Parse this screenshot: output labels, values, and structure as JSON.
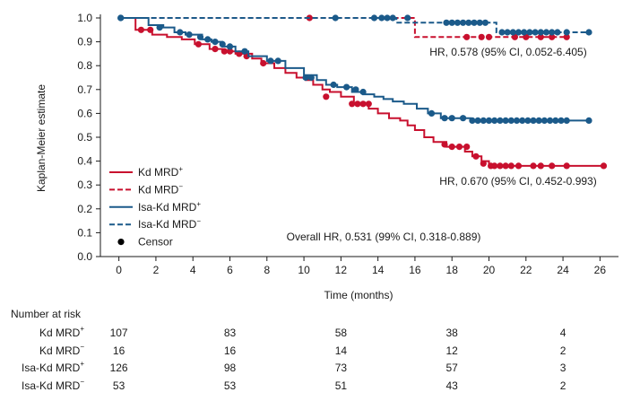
{
  "chart_data": {
    "type": "line",
    "title": "",
    "xlabel": "Time (months)",
    "ylabel": "Kaplan-Meier estimate",
    "xlim": [
      -1,
      27
    ],
    "ylim": [
      0,
      1.0
    ],
    "x_ticks": [
      "0",
      "2",
      "4",
      "6",
      "8",
      "10",
      "12",
      "14",
      "16",
      "18",
      "20",
      "22",
      "24",
      "26"
    ],
    "y_ticks": [
      "0.0",
      "0.1",
      "0.2",
      "0.3",
      "0.4",
      "0.5",
      "0.6",
      "0.7",
      "0.8",
      "0.9",
      "1.0"
    ],
    "legend": {
      "position": "left",
      "entries": [
        {
          "label": "Kd MRD",
          "sup": "+",
          "color": "#c8102e",
          "dash": "solid"
        },
        {
          "label": "Kd MRD",
          "sup": "−",
          "color": "#c8102e",
          "dash": "dashed"
        },
        {
          "label": "Isa-Kd MRD",
          "sup": "+",
          "color": "#1b5a8a",
          "dash": "solid"
        },
        {
          "label": "Isa-Kd MRD",
          "sup": "−",
          "color": "#1b5a8a",
          "dash": "dashed"
        },
        {
          "label": "Censor",
          "sup": "",
          "color": "#000000",
          "dash": "dot"
        }
      ]
    },
    "annotations": {
      "hr_mrd_neg": "HR, 0.578 (95% CI, 0.052-6.405)",
      "hr_mrd_pos": "HR, 0.670 (95% CI, 0.452-0.993)",
      "overall": "Overall HR, 0.531 (99% CI, 0.318-0.889)"
    },
    "series": [
      {
        "name": "Kd MRD+",
        "color": "#c8102e",
        "dash": "solid",
        "steps": [
          [
            0,
            1.0
          ],
          [
            0.9,
            0.95
          ],
          [
            1.8,
            0.93
          ],
          [
            2.6,
            0.92
          ],
          [
            3.4,
            0.91
          ],
          [
            4.1,
            0.89
          ],
          [
            4.9,
            0.87
          ],
          [
            5.6,
            0.86
          ],
          [
            6.3,
            0.85
          ],
          [
            7.2,
            0.83
          ],
          [
            7.7,
            0.81
          ],
          [
            8.4,
            0.79
          ],
          [
            9.0,
            0.77
          ],
          [
            9.6,
            0.75
          ],
          [
            10.1,
            0.74
          ],
          [
            10.5,
            0.72
          ],
          [
            11.0,
            0.7
          ],
          [
            11.4,
            0.69
          ],
          [
            12.0,
            0.67
          ],
          [
            12.7,
            0.64
          ],
          [
            13.5,
            0.62
          ],
          [
            14.0,
            0.6
          ],
          [
            14.6,
            0.58
          ],
          [
            15.2,
            0.57
          ],
          [
            15.6,
            0.55
          ],
          [
            16.0,
            0.53
          ],
          [
            16.5,
            0.5
          ],
          [
            17.0,
            0.48
          ],
          [
            17.7,
            0.46
          ],
          [
            18.7,
            0.44
          ],
          [
            19.1,
            0.42
          ],
          [
            19.6,
            0.4
          ],
          [
            20.0,
            0.38
          ]
        ],
        "end_x": 26.2,
        "censors": [
          [
            1.2,
            0.95
          ],
          [
            1.7,
            0.95
          ],
          [
            4.3,
            0.89
          ],
          [
            5.2,
            0.87
          ],
          [
            5.7,
            0.86
          ],
          [
            6.0,
            0.86
          ],
          [
            6.5,
            0.85
          ],
          [
            6.9,
            0.84
          ],
          [
            7.8,
            0.81
          ],
          [
            11.2,
            0.67
          ],
          [
            12.6,
            0.64
          ],
          [
            12.9,
            0.64
          ],
          [
            13.2,
            0.64
          ],
          [
            13.5,
            0.64
          ],
          [
            17.6,
            0.47
          ],
          [
            18.0,
            0.46
          ],
          [
            18.4,
            0.46
          ],
          [
            18.8,
            0.46
          ],
          [
            19.3,
            0.42
          ],
          [
            19.7,
            0.39
          ],
          [
            20.1,
            0.38
          ],
          [
            20.3,
            0.38
          ],
          [
            20.6,
            0.38
          ],
          [
            20.9,
            0.38
          ],
          [
            21.2,
            0.38
          ],
          [
            21.6,
            0.38
          ],
          [
            22.4,
            0.38
          ],
          [
            22.8,
            0.38
          ],
          [
            23.4,
            0.38
          ],
          [
            24.2,
            0.38
          ],
          [
            26.2,
            0.38
          ]
        ]
      },
      {
        "name": "Kd MRD−",
        "color": "#c8102e",
        "dash": "dashed",
        "steps": [
          [
            0,
            1.0
          ],
          [
            16.0,
            0.92
          ]
        ],
        "end_x": 24.2,
        "censors": [
          [
            10.3,
            1.0
          ],
          [
            18.8,
            0.92
          ],
          [
            19.6,
            0.92
          ],
          [
            20.0,
            0.92
          ],
          [
            21.4,
            0.92
          ],
          [
            22.0,
            0.92
          ],
          [
            22.8,
            0.92
          ],
          [
            23.4,
            0.92
          ],
          [
            24.2,
            0.92
          ]
        ]
      },
      {
        "name": "Isa-Kd MRD+",
        "color": "#1b5a8a",
        "dash": "solid",
        "steps": [
          [
            0,
            1.0
          ],
          [
            1.6,
            0.97
          ],
          [
            2.4,
            0.96
          ],
          [
            3.0,
            0.94
          ],
          [
            3.6,
            0.93
          ],
          [
            4.5,
            0.91
          ],
          [
            5.0,
            0.9
          ],
          [
            5.6,
            0.88
          ],
          [
            6.3,
            0.86
          ],
          [
            7.0,
            0.84
          ],
          [
            8.0,
            0.82
          ],
          [
            9.0,
            0.79
          ],
          [
            10.0,
            0.76
          ],
          [
            10.7,
            0.74
          ],
          [
            11.2,
            0.72
          ],
          [
            11.8,
            0.71
          ],
          [
            12.6,
            0.69
          ],
          [
            13.2,
            0.68
          ],
          [
            13.8,
            0.67
          ],
          [
            14.3,
            0.66
          ],
          [
            14.8,
            0.65
          ],
          [
            15.4,
            0.64
          ],
          [
            16.1,
            0.62
          ],
          [
            16.7,
            0.6
          ],
          [
            17.4,
            0.58
          ],
          [
            18.2,
            0.58
          ],
          [
            19.0,
            0.57
          ]
        ],
        "end_x": 25.4,
        "censors": [
          [
            0.1,
            1.0
          ],
          [
            2.2,
            0.96
          ],
          [
            3.3,
            0.94
          ],
          [
            3.8,
            0.93
          ],
          [
            4.4,
            0.92
          ],
          [
            4.8,
            0.91
          ],
          [
            5.2,
            0.9
          ],
          [
            5.6,
            0.89
          ],
          [
            6.0,
            0.88
          ],
          [
            6.8,
            0.86
          ],
          [
            8.2,
            0.82
          ],
          [
            8.6,
            0.82
          ],
          [
            10.1,
            0.75
          ],
          [
            10.4,
            0.75
          ],
          [
            11.6,
            0.72
          ],
          [
            12.3,
            0.71
          ],
          [
            12.8,
            0.7
          ],
          [
            13.2,
            0.69
          ],
          [
            16.9,
            0.6
          ],
          [
            17.6,
            0.58
          ],
          [
            18.0,
            0.58
          ],
          [
            18.6,
            0.58
          ],
          [
            19.1,
            0.57
          ],
          [
            19.4,
            0.57
          ],
          [
            19.7,
            0.57
          ],
          [
            20.0,
            0.57
          ],
          [
            20.3,
            0.57
          ],
          [
            20.6,
            0.57
          ],
          [
            20.9,
            0.57
          ],
          [
            21.2,
            0.57
          ],
          [
            21.5,
            0.57
          ],
          [
            21.8,
            0.57
          ],
          [
            22.1,
            0.57
          ],
          [
            22.4,
            0.57
          ],
          [
            22.7,
            0.57
          ],
          [
            23.0,
            0.57
          ],
          [
            23.3,
            0.57
          ],
          [
            23.6,
            0.57
          ],
          [
            23.9,
            0.57
          ],
          [
            24.2,
            0.57
          ],
          [
            25.4,
            0.57
          ]
        ]
      },
      {
        "name": "Isa-Kd MRD−",
        "color": "#1b5a8a",
        "dash": "dashed",
        "steps": [
          [
            0,
            1.0
          ],
          [
            15.0,
            0.98
          ],
          [
            17.2,
            0.98
          ],
          [
            20.4,
            0.94
          ]
        ],
        "end_x": 25.4,
        "censors": [
          [
            0.1,
            1.0
          ],
          [
            11.7,
            1.0
          ],
          [
            13.8,
            1.0
          ],
          [
            14.2,
            1.0
          ],
          [
            14.5,
            1.0
          ],
          [
            14.8,
            1.0
          ],
          [
            15.6,
            1.0
          ],
          [
            17.7,
            0.98
          ],
          [
            18.0,
            0.98
          ],
          [
            18.3,
            0.98
          ],
          [
            18.6,
            0.98
          ],
          [
            18.9,
            0.98
          ],
          [
            19.2,
            0.98
          ],
          [
            19.5,
            0.98
          ],
          [
            19.8,
            0.98
          ],
          [
            20.7,
            0.94
          ],
          [
            21.0,
            0.94
          ],
          [
            21.3,
            0.94
          ],
          [
            21.6,
            0.94
          ],
          [
            21.9,
            0.94
          ],
          [
            22.2,
            0.94
          ],
          [
            22.5,
            0.94
          ],
          [
            22.8,
            0.94
          ],
          [
            23.1,
            0.94
          ],
          [
            23.4,
            0.94
          ],
          [
            23.7,
            0.94
          ],
          [
            24.2,
            0.94
          ],
          [
            25.4,
            0.94
          ]
        ]
      }
    ]
  },
  "risk_table": {
    "title": "Number at risk",
    "timepoints": [
      "0",
      "6",
      "12",
      "18",
      "24"
    ],
    "rows": [
      {
        "label": "Kd MRD",
        "sup": "+",
        "values": [
          "107",
          "83",
          "58",
          "38",
          "4"
        ]
      },
      {
        "label": "Kd MRD",
        "sup": "−",
        "values": [
          "16",
          "16",
          "14",
          "12",
          "2"
        ]
      },
      {
        "label": "Isa-Kd MRD",
        "sup": "+",
        "values": [
          "126",
          "98",
          "73",
          "57",
          "3"
        ]
      },
      {
        "label": "Isa-Kd MRD",
        "sup": "−",
        "values": [
          "53",
          "53",
          "51",
          "43",
          "2"
        ]
      }
    ]
  }
}
